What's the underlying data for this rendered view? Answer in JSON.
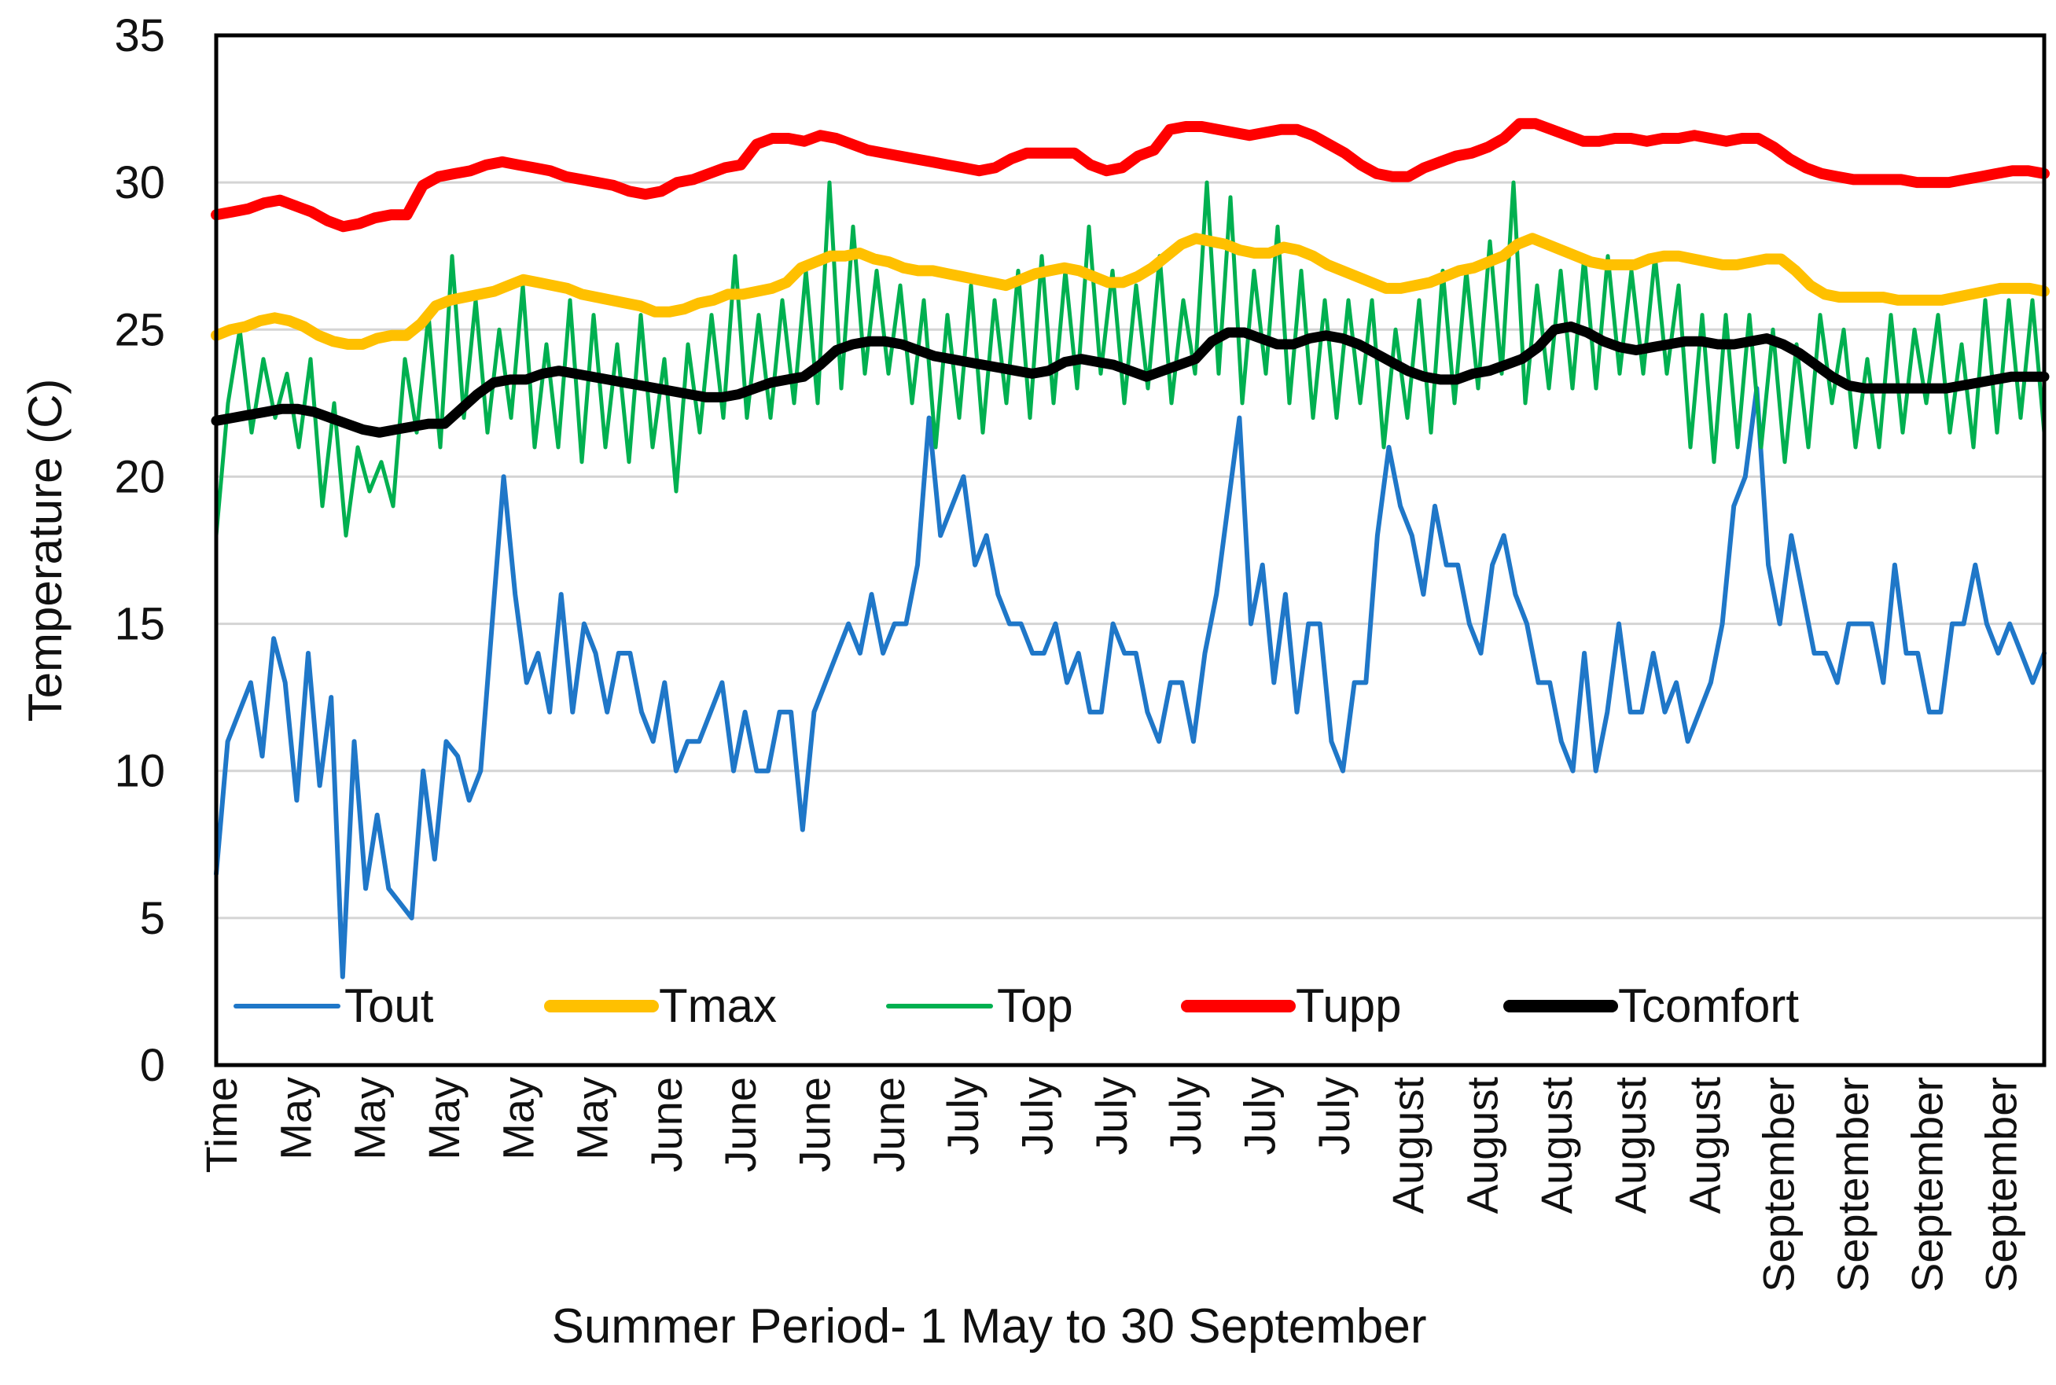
{
  "chart_data": {
    "type": "line",
    "title": "",
    "xlabel": "Summer Period- 1 May to 30 September",
    "ylabel": "Temperature (C)",
    "ylim": [
      0,
      35
    ],
    "yticks": [
      0,
      5,
      10,
      15,
      20,
      25,
      30,
      35
    ],
    "grid": "horizontal",
    "legend_position": "bottom-inside",
    "x_tick_labels": [
      "Time",
      "May",
      "May",
      "May",
      "May",
      "May",
      "June",
      "June",
      "June",
      "June",
      "July",
      "July",
      "July",
      "July",
      "July",
      "July",
      "August",
      "August",
      "August",
      "August",
      "August",
      "September",
      "September",
      "September",
      "September"
    ],
    "x_samples_per_tick": 6,
    "series": [
      {
        "name": "Tout",
        "color": "#1F77C8",
        "values": [
          6.5,
          11,
          12,
          13,
          10.5,
          14.5,
          13,
          9,
          14,
          9.5,
          12.5,
          3,
          11,
          6,
          8.5,
          6,
          5.5,
          5,
          10,
          7,
          11,
          10.5,
          9,
          10,
          15,
          20,
          16,
          13,
          14,
          12,
          16,
          12,
          15,
          14,
          12,
          14,
          14,
          12,
          11,
          13,
          10,
          11,
          11,
          12,
          13,
          10,
          12,
          10,
          10,
          12,
          12,
          8,
          12,
          13,
          14,
          15,
          14,
          16,
          14,
          15,
          15,
          17,
          22,
          18,
          19,
          20,
          17,
          18,
          16,
          15,
          15,
          14,
          14,
          15,
          13,
          14,
          12,
          12,
          15,
          14,
          14,
          12,
          11,
          13,
          13,
          11,
          14,
          16,
          19,
          22,
          15,
          17,
          13,
          16,
          12,
          15,
          15,
          11,
          10,
          13,
          13,
          18,
          21,
          19,
          18,
          16,
          19,
          17,
          17,
          15,
          14,
          17,
          18,
          16,
          15,
          13,
          13,
          11,
          10,
          14,
          10,
          12,
          15,
          12,
          12,
          14,
          12,
          13,
          11,
          12,
          13,
          15,
          19,
          20,
          23,
          17,
          15,
          18,
          16,
          14,
          14,
          13,
          15,
          15,
          15,
          13,
          17,
          14,
          14,
          12,
          12,
          15,
          15,
          17,
          15,
          14,
          15,
          14,
          13,
          14
        ]
      },
      {
        "name": "Tmax",
        "color": "#FFC000",
        "values": [
          24.8,
          25.0,
          25.1,
          25.3,
          25.4,
          25.3,
          25.1,
          24.8,
          24.6,
          24.5,
          24.5,
          24.7,
          24.8,
          24.8,
          25.2,
          25.8,
          26.0,
          26.1,
          26.2,
          26.3,
          26.5,
          26.7,
          26.6,
          26.5,
          26.4,
          26.2,
          26.1,
          26.0,
          25.9,
          25.8,
          25.6,
          25.6,
          25.7,
          25.9,
          26.0,
          26.2,
          26.2,
          26.3,
          26.4,
          26.6,
          27.1,
          27.3,
          27.5,
          27.5,
          27.6,
          27.4,
          27.3,
          27.1,
          27.0,
          27.0,
          26.9,
          26.8,
          26.7,
          26.6,
          26.5,
          26.7,
          26.9,
          27.0,
          27.1,
          27.0,
          26.8,
          26.6,
          26.6,
          26.8,
          27.1,
          27.5,
          27.9,
          28.1,
          28.0,
          27.9,
          27.7,
          27.6,
          27.6,
          27.8,
          27.7,
          27.5,
          27.2,
          27.0,
          26.8,
          26.6,
          26.4,
          26.4,
          26.5,
          26.6,
          26.8,
          27.0,
          27.1,
          27.3,
          27.5,
          27.9,
          28.1,
          27.9,
          27.7,
          27.5,
          27.3,
          27.2,
          27.2,
          27.2,
          27.4,
          27.5,
          27.5,
          27.4,
          27.3,
          27.2,
          27.2,
          27.3,
          27.4,
          27.4,
          27.0,
          26.5,
          26.2,
          26.1,
          26.1,
          26.1,
          26.1,
          26.0,
          26.0,
          26.0,
          26.0,
          26.1,
          26.2,
          26.3,
          26.4,
          26.4,
          26.4,
          26.3
        ]
      },
      {
        "name": "Top",
        "color": "#00B050",
        "values": [
          18,
          22.5,
          25,
          21.5,
          24,
          22,
          23.5,
          21,
          24,
          19,
          22.5,
          18,
          21,
          19.5,
          20.5,
          19,
          24,
          21.5,
          25.5,
          21,
          27.5,
          22,
          26,
          21.5,
          25,
          22,
          26.5,
          21,
          24.5,
          21,
          26,
          20.5,
          25.5,
          21,
          24.5,
          20.5,
          25.5,
          21,
          24,
          19.5,
          24.5,
          21.5,
          25.5,
          22,
          27.5,
          22,
          25.5,
          22,
          26,
          22.5,
          27,
          22.5,
          30,
          23,
          28.5,
          23.5,
          27,
          23.5,
          26.5,
          22.5,
          26,
          21,
          25.5,
          22,
          26.5,
          21.5,
          26,
          22.5,
          27,
          22,
          27.5,
          22.5,
          27,
          23,
          28.5,
          23.5,
          27,
          22.5,
          26.5,
          23,
          27.5,
          22.5,
          26,
          23.5,
          30,
          23.5,
          29.5,
          22.5,
          27,
          23.5,
          28.5,
          22.5,
          27,
          22,
          26,
          22,
          26,
          22.5,
          26,
          21,
          25,
          22,
          26,
          21.5,
          27,
          22.5,
          27,
          23,
          28,
          23.5,
          30,
          22.5,
          26.5,
          23,
          27,
          23,
          27.5,
          23,
          27.5,
          23.5,
          27,
          23.5,
          27.5,
          23.5,
          26.5,
          21,
          25.5,
          20.5,
          25.5,
          21,
          25.5,
          21,
          25,
          20.5,
          24.5,
          21,
          25.5,
          22.5,
          25,
          21,
          24,
          21,
          25.5,
          21.5,
          25,
          22.5,
          25.5,
          21.5,
          24.5,
          21,
          26,
          21.5,
          26,
          22,
          26,
          21.5
        ]
      },
      {
        "name": "Tupp",
        "color": "#FF0000",
        "values": [
          28.9,
          29.0,
          29.1,
          29.3,
          29.4,
          29.2,
          29.0,
          28.7,
          28.5,
          28.6,
          28.8,
          28.9,
          28.9,
          29.9,
          30.2,
          30.3,
          30.4,
          30.6,
          30.7,
          30.6,
          30.5,
          30.4,
          30.2,
          30.1,
          30.0,
          29.9,
          29.7,
          29.6,
          29.7,
          30.0,
          30.1,
          30.3,
          30.5,
          30.6,
          31.3,
          31.5,
          31.5,
          31.4,
          31.6,
          31.5,
          31.3,
          31.1,
          31.0,
          30.9,
          30.8,
          30.7,
          30.6,
          30.5,
          30.4,
          30.5,
          30.8,
          31.0,
          31.0,
          31.0,
          31.0,
          30.6,
          30.4,
          30.5,
          30.9,
          31.1,
          31.8,
          31.9,
          31.9,
          31.8,
          31.7,
          31.6,
          31.7,
          31.8,
          31.8,
          31.6,
          31.3,
          31.0,
          30.6,
          30.3,
          30.2,
          30.2,
          30.5,
          30.7,
          30.9,
          31.0,
          31.2,
          31.5,
          32.0,
          32.0,
          31.8,
          31.6,
          31.4,
          31.4,
          31.5,
          31.5,
          31.4,
          31.5,
          31.5,
          31.6,
          31.5,
          31.4,
          31.5,
          31.5,
          31.2,
          30.8,
          30.5,
          30.3,
          30.2,
          30.1,
          30.1,
          30.1,
          30.1,
          30.0,
          30.0,
          30.0,
          30.1,
          30.2,
          30.3,
          30.4,
          30.4,
          30.3
        ]
      },
      {
        "name": "Tcomfort",
        "color": "#000000",
        "values": [
          21.9,
          22.0,
          22.1,
          22.2,
          22.3,
          22.3,
          22.2,
          22.0,
          21.8,
          21.6,
          21.5,
          21.6,
          21.7,
          21.8,
          21.8,
          22.3,
          22.8,
          23.2,
          23.3,
          23.3,
          23.5,
          23.6,
          23.5,
          23.4,
          23.3,
          23.2,
          23.1,
          23.0,
          22.9,
          22.8,
          22.7,
          22.7,
          22.8,
          23.0,
          23.2,
          23.3,
          23.4,
          23.8,
          24.3,
          24.5,
          24.6,
          24.6,
          24.5,
          24.3,
          24.1,
          24.0,
          23.9,
          23.8,
          23.7,
          23.6,
          23.5,
          23.6,
          23.9,
          24.0,
          23.9,
          23.8,
          23.6,
          23.4,
          23.6,
          23.8,
          24.0,
          24.6,
          24.9,
          24.9,
          24.7,
          24.5,
          24.5,
          24.7,
          24.8,
          24.7,
          24.5,
          24.2,
          23.9,
          23.6,
          23.4,
          23.3,
          23.3,
          23.5,
          23.6,
          23.8,
          24.0,
          24.4,
          25.0,
          25.1,
          24.9,
          24.6,
          24.4,
          24.3,
          24.4,
          24.5,
          24.6,
          24.6,
          24.5,
          24.5,
          24.6,
          24.7,
          24.5,
          24.2,
          23.8,
          23.4,
          23.1,
          23.0,
          23.0,
          23.0,
          23.0,
          23.0,
          23.0,
          23.1,
          23.2,
          23.3,
          23.4,
          23.4,
          23.4
        ]
      }
    ]
  }
}
